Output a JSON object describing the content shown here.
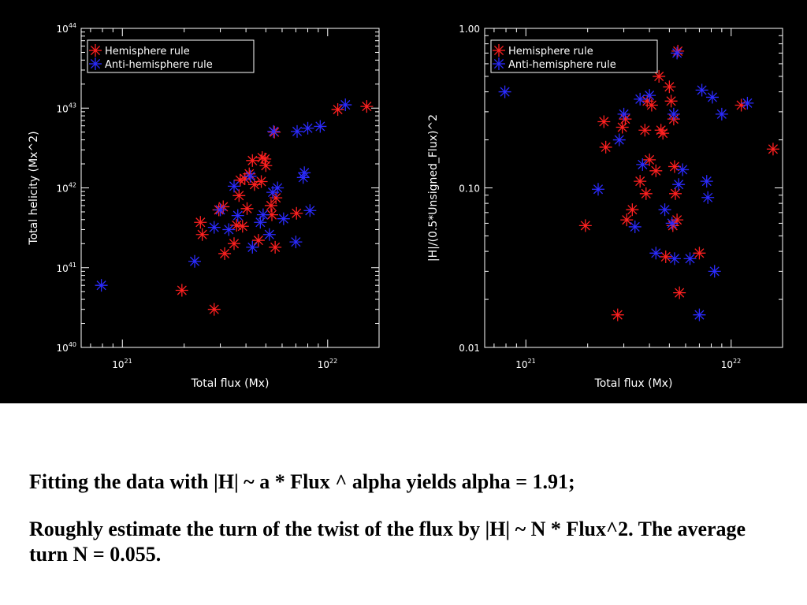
{
  "colors": {
    "hemisphere": "#ff2020",
    "anti_hemisphere": "#2b2bff",
    "axes": "#ffffff",
    "background": "#000000"
  },
  "chart_data": [
    {
      "type": "scatter",
      "xlabel": "Total flux (Mx)",
      "ylabel": "Total helicity (Mx^2)",
      "xscale": "log",
      "yscale": "log",
      "xlim": [
        6.3e+20,
        1.78e+22
      ],
      "ylim": [
        1e+40,
        1e+44
      ],
      "xticks": [
        {
          "value": 1e+21,
          "base": "10",
          "exp": "21"
        },
        {
          "value": 1e+22,
          "base": "10",
          "exp": "22"
        }
      ],
      "yticks": [
        {
          "value": 1e+40,
          "base": "10",
          "exp": "40"
        },
        {
          "value": 1e+41,
          "base": "10",
          "exp": "41"
        },
        {
          "value": 1e+42,
          "base": "10",
          "exp": "42"
        },
        {
          "value": 1e+43,
          "base": "10",
          "exp": "43"
        },
        {
          "value": 1e+44,
          "base": "10",
          "exp": "44"
        }
      ],
      "legend_position": "top-left",
      "series": [
        {
          "name": "Hemisphere rule",
          "color": "#ff2020",
          "points": [
            [
              1.95e+21,
              5.2e+40
            ],
            [
              2.4e+21,
              3.7e+41
            ],
            [
              2.45e+21,
              2.6e+41
            ],
            [
              2.8e+21,
              3e+40
            ],
            [
              2.95e+21,
              5.3e+41
            ],
            [
              3.1e+21,
              5.8e+41
            ],
            [
              3.15e+21,
              1.5e+41
            ],
            [
              3.5e+21,
              2e+41
            ],
            [
              3.6e+21,
              3.4e+41
            ],
            [
              3.7e+21,
              8e+41
            ],
            [
              3.75e+21,
              1.25e+42
            ],
            [
              3.85e+21,
              3.3e+41
            ],
            [
              3.95e+21,
              1.3e+42
            ],
            [
              4.05e+21,
              5.5e+41
            ],
            [
              4.15e+21,
              1.5e+42
            ],
            [
              4.3e+21,
              2.2e+42
            ],
            [
              4.4e+21,
              1.1e+42
            ],
            [
              4.6e+21,
              2.2e+41
            ],
            [
              4.75e+21,
              1.2e+42
            ],
            [
              4.8e+21,
              2.4e+42
            ],
            [
              4.95e+21,
              2.3e+42
            ],
            [
              5e+21,
              1.9e+42
            ],
            [
              5.3e+21,
              6e+41
            ],
            [
              5.35e+21,
              4.6e+41
            ],
            [
              5.5e+21,
              5e+42
            ],
            [
              5.55e+21,
              1.8e+41
            ],
            [
              5.6e+21,
              7.5e+41
            ],
            [
              7.05e+21,
              4.8e+41
            ],
            [
              1.12e+22,
              9.6e+42
            ],
            [
              1.55e+22,
              1.05e+43
            ]
          ]
        },
        {
          "name": "Anti-hemisphere rule",
          "color": "#2b2bff",
          "points": [
            [
              7.9e+20,
              6e+40
            ],
            [
              2.25e+21,
              1.2e+41
            ],
            [
              2.8e+21,
              3.2e+41
            ],
            [
              3e+21,
              5.3e+41
            ],
            [
              3.3e+21,
              3e+41
            ],
            [
              3.5e+21,
              1.05e+42
            ],
            [
              3.65e+21,
              4.5e+41
            ],
            [
              4.2e+21,
              1.4e+42
            ],
            [
              4.3e+21,
              1.8e+41
            ],
            [
              4.7e+21,
              3.7e+41
            ],
            [
              4.85e+21,
              4.6e+41
            ],
            [
              5.2e+21,
              2.6e+41
            ],
            [
              5.4e+21,
              8.8e+41
            ],
            [
              5.45e+21,
              5.1e+42
            ],
            [
              5.7e+21,
              1e+42
            ],
            [
              6.1e+21,
              4.1e+41
            ],
            [
              7e+21,
              2.1e+41
            ],
            [
              7.1e+21,
              5.1e+42
            ],
            [
              7.6e+21,
              1.35e+42
            ],
            [
              7.7e+21,
              1.55e+42
            ],
            [
              8e+21,
              5.6e+42
            ],
            [
              8.2e+21,
              5.2e+41
            ],
            [
              9.2e+21,
              5.9e+42
            ],
            [
              1.22e+22,
              1.1e+43
            ]
          ]
        }
      ]
    },
    {
      "type": "scatter",
      "xlabel": "Total flux (Mx)",
      "ylabel": "|H|/(0.5*Unsigned_Flux)^2",
      "xscale": "log",
      "yscale": "log",
      "xlim": [
        6.3e+20,
        1.78e+22
      ],
      "ylim": [
        0.01,
        1.0
      ],
      "xticks": [
        {
          "value": 1e+21,
          "base": "10",
          "exp": "21"
        },
        {
          "value": 1e+22,
          "base": "10",
          "exp": "22"
        }
      ],
      "yticks": [
        {
          "value": 0.01,
          "label": "0.01"
        },
        {
          "value": 0.1,
          "label": "0.10"
        },
        {
          "value": 1.0,
          "label": "1.00"
        }
      ],
      "legend_position": "top-left",
      "series": [
        {
          "name": "Hemisphere rule",
          "color": "#ff2020",
          "points": [
            [
              1.95e+21,
              0.058
            ],
            [
              2.4e+21,
              0.26
            ],
            [
              2.45e+21,
              0.18
            ],
            [
              2.8e+21,
              0.016
            ],
            [
              2.95e+21,
              0.24
            ],
            [
              3.05e+21,
              0.27
            ],
            [
              3.1e+21,
              0.063
            ],
            [
              3.3e+21,
              0.073
            ],
            [
              3.6e+21,
              0.11
            ],
            [
              3.8e+21,
              0.23
            ],
            [
              3.85e+21,
              0.092
            ],
            [
              3.9e+21,
              0.35
            ],
            [
              4e+21,
              0.15
            ],
            [
              4.1e+21,
              0.33
            ],
            [
              4.3e+21,
              0.128
            ],
            [
              4.45e+21,
              0.5
            ],
            [
              4.55e+21,
              0.23
            ],
            [
              4.65e+21,
              0.22
            ],
            [
              4.8e+21,
              0.037
            ],
            [
              5e+21,
              0.43
            ],
            [
              5.1e+21,
              0.35
            ],
            [
              5.2e+21,
              0.058
            ],
            [
              5.25e+21,
              0.27
            ],
            [
              5.3e+21,
              0.136
            ],
            [
              5.35e+21,
              0.092
            ],
            [
              5.45e+21,
              0.063
            ],
            [
              5.5e+21,
              0.72
            ],
            [
              5.6e+21,
              0.022
            ],
            [
              7e+21,
              0.039
            ],
            [
              1.12e+22,
              0.33
            ],
            [
              1.6e+22,
              0.175
            ]
          ]
        },
        {
          "name": "Anti-hemisphere rule",
          "color": "#2b2bff",
          "points": [
            [
              7.9e+20,
              0.4
            ],
            [
              2.25e+21,
              0.098
            ],
            [
              2.85e+21,
              0.2
            ],
            [
              3e+21,
              0.29
            ],
            [
              3.4e+21,
              0.057
            ],
            [
              3.6e+21,
              0.36
            ],
            [
              3.7e+21,
              0.14
            ],
            [
              4e+21,
              0.38
            ],
            [
              4.3e+21,
              0.039
            ],
            [
              4.75e+21,
              0.073
            ],
            [
              5.15e+21,
              0.06
            ],
            [
              5.25e+21,
              0.29
            ],
            [
              5.3e+21,
              0.036
            ],
            [
              5.45e+21,
              0.7
            ],
            [
              5.55e+21,
              0.105
            ],
            [
              5.8e+21,
              0.13
            ],
            [
              6.3e+21,
              0.036
            ],
            [
              7e+21,
              0.016
            ],
            [
              7.2e+21,
              0.41
            ],
            [
              7.6e+21,
              0.11
            ],
            [
              7.7e+21,
              0.087
            ],
            [
              8.1e+21,
              0.37
            ],
            [
              8.3e+21,
              0.03
            ],
            [
              9e+21,
              0.29
            ],
            [
              1.2e+22,
              0.34
            ]
          ]
        }
      ]
    }
  ],
  "caption": {
    "line1": "Fitting the data with |H| ~ a * Flux ^ alpha yields alpha = 1.91;",
    "line2": "Roughly estimate the turn of the twist of the flux by |H| ~ N * Flux^2. The average turn N = 0.055."
  }
}
